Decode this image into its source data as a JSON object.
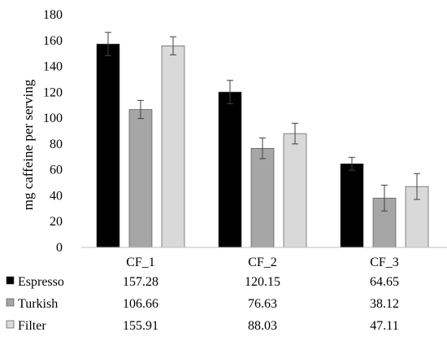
{
  "chart_data": {
    "type": "bar",
    "ylabel": "mg caffeine per serving",
    "ylim": [
      0,
      180
    ],
    "ytick_step": 20,
    "yticks": [
      "0",
      "20",
      "40",
      "60",
      "80",
      "100",
      "120",
      "140",
      "160",
      "180"
    ],
    "grid": false,
    "categories": [
      "CF_1",
      "CF_2",
      "CF_3"
    ],
    "series": [
      {
        "name": "Espresso",
        "color": "#000000",
        "values": [
          157.28,
          120.15,
          64.65
        ],
        "value_labels": [
          "157.28",
          "120.15",
          "64.65"
        ],
        "error": [
          9,
          9,
          5
        ]
      },
      {
        "name": "Turkish",
        "color": "#a6a6a6",
        "values": [
          106.66,
          76.63,
          38.12
        ],
        "value_labels": [
          "106.66",
          "76.63",
          "38.12"
        ],
        "error": [
          7,
          8,
          10
        ]
      },
      {
        "name": "Filter",
        "color": "#d9d9d9",
        "values": [
          155.91,
          88.03,
          47.11
        ],
        "value_labels": [
          "155.91",
          "88.03",
          "47.11"
        ],
        "error": [
          7,
          8,
          10
        ]
      }
    ],
    "legend_placement": "data-table-left"
  }
}
